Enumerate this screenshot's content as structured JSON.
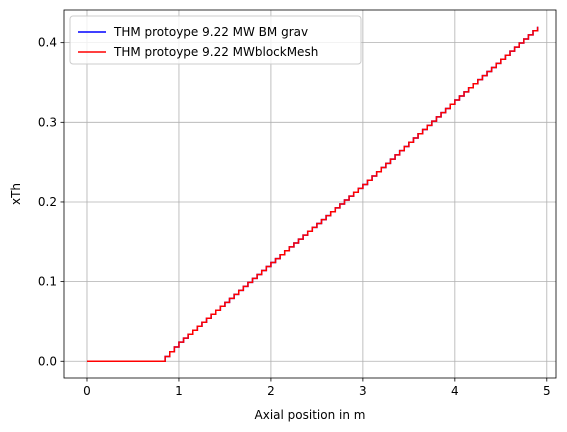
{
  "chart_data": {
    "type": "line",
    "xlabel": "Axial position in m",
    "ylabel": "xTh",
    "xlim": [
      -0.25,
      5.1
    ],
    "ylim": [
      -0.021,
      0.441
    ],
    "x_ticks": [
      0,
      1,
      2,
      3,
      4,
      5
    ],
    "x_tick_labels": [
      "0",
      "1",
      "2",
      "3",
      "4",
      "5"
    ],
    "y_ticks": [
      0.0,
      0.1,
      0.2,
      0.3,
      0.4
    ],
    "y_tick_labels": [
      "0.0",
      "0.1",
      "0.2",
      "0.3",
      "0.4"
    ],
    "grid": true,
    "legend_position": "top-left",
    "series": [
      {
        "name": "THM protoype 9.22 MW BM grav",
        "color": "#0000ff",
        "x": [
          0,
          0.8,
          1,
          2,
          3,
          4,
          4.9
        ],
        "y": [
          0,
          0,
          0.024,
          0.124,
          0.222,
          0.328,
          0.42
        ]
      },
      {
        "name": "THM protoype 9.22 MWblockMesh",
        "color": "#ff0000",
        "x": [
          0,
          0.8,
          1,
          2,
          3,
          4,
          4.9
        ],
        "y": [
          0,
          0,
          0.024,
          0.124,
          0.222,
          0.328,
          0.42
        ]
      }
    ]
  }
}
